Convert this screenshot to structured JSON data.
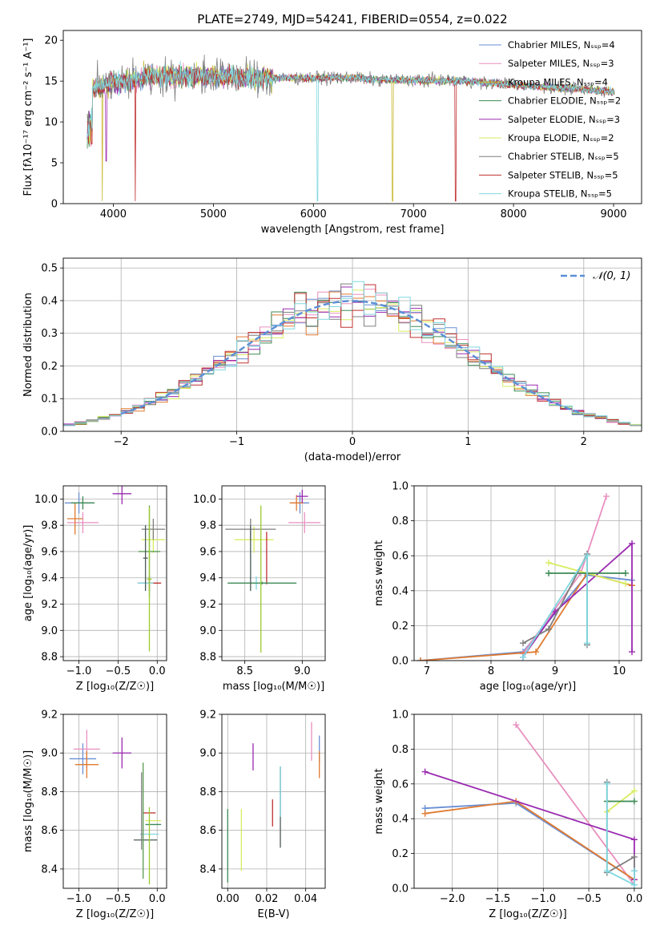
{
  "chart_data": [
    {
      "id": "spectrum",
      "type": "line",
      "title": "PLATE=2749, MJD=54241, FIBERID=0554, z=0.022",
      "xlabel": "wavelength [Angstrom, rest frame]",
      "ylabel": "Flux [fλ10⁻¹⁷ erg cm⁻² s⁻¹ A⁻¹]",
      "xlim": [
        3500,
        9280
      ],
      "ylim": [
        0,
        21.2
      ],
      "xticks": [
        4000,
        5000,
        6000,
        7000,
        8000,
        9000
      ],
      "yticks": [
        0,
        5,
        10,
        15,
        20
      ],
      "grid": false,
      "legend_position": "top-right",
      "data_range": [
        3740,
        9010
      ],
      "series": [
        {
          "name": "Chabrier MILES, Nₛₛₚ=4",
          "color": "#6a8fd4",
          "drops": []
        },
        {
          "name": "Salpeter MILES, Nₛₛₚ=3",
          "color": "#e88fbe",
          "drops": []
        },
        {
          "name": "Kroupa MILES, Nₛₛₚ=4",
          "color": "#c8b830",
          "drops": [
            [
              3890,
              0.3
            ],
            [
              6790,
              0.3
            ]
          ]
        },
        {
          "name": "Chabrier ELODIE, Nₛₛₚ=2",
          "color": "#3d8a55",
          "drops": []
        },
        {
          "name": "Salpeter ELODIE, Nₛₛₚ=3",
          "color": "#9a2ab0",
          "drops": [
            [
              3930,
              5.2
            ]
          ]
        },
        {
          "name": "Kroupa ELODIE, Nₛₛₚ=2",
          "color": "#d8ec60",
          "drops": []
        },
        {
          "name": "Chabrier STELIB, Nₛₛₚ=5",
          "color": "#7f7f7f",
          "drops": []
        },
        {
          "name": "Salpeter STELIB, Nₛₛₚ=5",
          "color": "#c03030",
          "drops": [
            [
              4220,
              0.3
            ],
            [
              7420,
              0.3
            ]
          ]
        },
        {
          "name": "Kroupa STELIB, Nₛₛₚ=5",
          "color": "#7fd8e0",
          "drops": [
            [
              6040,
              0.3
            ]
          ]
        }
      ]
    },
    {
      "id": "residuals",
      "type": "bar",
      "xlabel": "(data-model)/error",
      "ylabel": "Normed distribution",
      "xlim": [
        -2.5,
        2.5
      ],
      "ylim": [
        0,
        0.53
      ],
      "xticks": [
        -2,
        -1,
        0,
        1,
        2
      ],
      "yticks": [
        0.0,
        0.1,
        0.2,
        0.3,
        0.4,
        0.5
      ],
      "grid": true,
      "legend_position": "top-right",
      "reference": {
        "name": "𝒩(0, 1)",
        "color": "#5b8fd6",
        "x_range": [
          -2.0,
          2.0
        ]
      },
      "bin_width": 0.1,
      "series_colors": [
        "#6a8fd4",
        "#e88fbe",
        "#e07a30",
        "#3d8a55",
        "#9a2ab0",
        "#d8ec60",
        "#7f7f7f",
        "#c03030",
        "#7fd8e0"
      ]
    },
    {
      "id": "age_vs_Z",
      "type": "scatter",
      "xlabel": "Z [log₁₀(Z/Z☉)]",
      "ylabel": "age  [log₁₀(age/yr)]",
      "xlim": [
        -1.2,
        0.12
      ],
      "ylim": [
        8.77,
        10.1
      ],
      "xticks": [
        -1.0,
        -0.5,
        0.0
      ],
      "yticks": [
        8.8,
        9.0,
        9.2,
        9.4,
        9.6,
        9.8,
        10.0
      ],
      "grid": true,
      "points": [
        {
          "color": "#6a8fd4",
          "x": -1.0,
          "xerr": 0.18,
          "y": 9.97,
          "yerr": 0.08
        },
        {
          "color": "#e88fbe",
          "x": -0.95,
          "xerr": 0.2,
          "y": 9.82,
          "yerr": 0.08
        },
        {
          "color": "#e07a30",
          "x": -1.05,
          "xerr": 0.1,
          "y": 9.85,
          "yerr": 0.12
        },
        {
          "color": "#3d8a55",
          "x": -0.95,
          "xerr": 0.15,
          "y": 9.97,
          "yerr": 0.05
        },
        {
          "color": "#9a2ab0",
          "x": -0.45,
          "xerr": 0.12,
          "y": 10.04,
          "yerr": 0.08
        },
        {
          "color": "#d8ec60",
          "x": -0.05,
          "xerr": 0.15,
          "y": 9.69,
          "yerr": 0.1
        },
        {
          "color": "#7f7f7f",
          "x": -0.05,
          "xerr": 0.15,
          "y": 9.77,
          "yerr": 0.08
        },
        {
          "color": "#c03030",
          "x": -0.1,
          "xerr": 0.15,
          "y": 9.36,
          "yerr": 0.06
        },
        {
          "color": "#7fd8e0",
          "x": -0.15,
          "xerr": 0.1,
          "y": 9.36,
          "yerr": 0.05
        },
        {
          "color": "#5a9a50",
          "x": -0.1,
          "xerr": 0.14,
          "y": 9.6,
          "yerr": 0.35
        },
        {
          "color": "#9aca30",
          "x": -0.1,
          "xerr": 0.03,
          "y": 9.39,
          "yerr": 0.55
        },
        {
          "color": "#4a5a58",
          "x": -0.15,
          "xerr": 0.03,
          "y": 9.55,
          "yerr": 0.25
        }
      ]
    },
    {
      "id": "age_vs_mass",
      "type": "scatter",
      "xlabel": "mass [log₁₀(M/M☉)]",
      "ylabel": "",
      "xlim": [
        8.3,
        9.2
      ],
      "ylim": [
        8.77,
        10.1
      ],
      "xticks": [
        8.5,
        9.0
      ],
      "yticks": [
        8.8,
        9.0,
        9.2,
        9.4,
        9.6,
        9.8,
        10.0
      ],
      "grid": true,
      "points": [
        {
          "color": "#6a8fd4",
          "x": 8.98,
          "xerr": 0.08,
          "y": 9.97,
          "yerr": 0.08
        },
        {
          "color": "#e88fbe",
          "x": 9.02,
          "xerr": 0.14,
          "y": 9.82,
          "yerr": 0.08
        },
        {
          "color": "#e07a30",
          "x": 8.95,
          "xerr": 0.06,
          "y": 9.97,
          "yerr": 0.06
        },
        {
          "color": "#9a2ab0",
          "x": 9.0,
          "xerr": 0.05,
          "y": 10.02,
          "yerr": 0.05
        },
        {
          "color": "#d8ec60",
          "x": 8.58,
          "xerr": 0.17,
          "y": 9.69,
          "yerr": 0.1
        },
        {
          "color": "#7f7f7f",
          "x": 8.55,
          "xerr": 0.22,
          "y": 9.77,
          "yerr": 0.08
        },
        {
          "color": "#c03030",
          "x": 8.69,
          "xerr": 0.0,
          "y": 9.55,
          "yerr": 0.2
        },
        {
          "color": "#7fd8e0",
          "x": 8.6,
          "xerr": 0.12,
          "y": 9.36,
          "yerr": 0.05
        },
        {
          "color": "#3d8a55",
          "x": 8.65,
          "xerr": 0.3,
          "y": 9.36,
          "yerr": 0.01
        },
        {
          "color": "#9aca30",
          "x": 8.64,
          "xerr": 0.0,
          "y": 9.39,
          "yerr": 0.56
        },
        {
          "color": "#4a5a58",
          "x": 8.55,
          "xerr": 0.0,
          "y": 9.55,
          "yerr": 0.25
        }
      ]
    },
    {
      "id": "weight_vs_age",
      "type": "line",
      "xlabel": "age  [log₁₀(age/yr)]",
      "ylabel": "mass weight",
      "xlim": [
        6.8,
        10.35
      ],
      "ylim": [
        0.0,
        1.0
      ],
      "xticks": [
        7,
        8,
        9,
        10
      ],
      "yticks": [
        0.0,
        0.2,
        0.4,
        0.6,
        0.8,
        1.0
      ],
      "grid": true,
      "series": [
        {
          "color": "#6a8fd4",
          "x": [
            6.9,
            8.5,
            9.5,
            10.2
          ],
          "y": [
            0.0,
            0.05,
            0.49,
            0.46
          ]
        },
        {
          "color": "#e88fbe",
          "x": [
            8.5,
            9.4,
            9.8
          ],
          "y": [
            0.04,
            0.5,
            0.94
          ]
        },
        {
          "color": "#e07a30",
          "x": [
            6.9,
            8.7,
            9.5,
            10.2
          ],
          "y": [
            0.0,
            0.05,
            0.5,
            0.43
          ]
        },
        {
          "color": "#9a2ab0",
          "x": [
            8.5,
            9.0,
            10.2,
            10.2
          ],
          "y": [
            0.02,
            0.28,
            0.67,
            0.05
          ]
        },
        {
          "color": "#d8ec60",
          "x": [
            8.9,
            10.1
          ],
          "y": [
            0.56,
            0.44
          ]
        },
        {
          "color": "#3d8a55",
          "x": [
            8.9,
            10.1
          ],
          "y": [
            0.5,
            0.5
          ]
        },
        {
          "color": "#7f7f7f",
          "x": [
            8.5,
            8.9,
            9.5,
            9.5
          ],
          "y": [
            0.1,
            0.18,
            0.61,
            0.09
          ]
        },
        {
          "color": "#7fd8e0",
          "x": [
            8.5,
            9.5,
            9.5
          ],
          "y": [
            0.02,
            0.6,
            0.1
          ]
        }
      ]
    },
    {
      "id": "mass_vs_Z",
      "type": "scatter",
      "xlabel": "Z [log₁₀(Z/Z☉)]",
      "ylabel": "mass [log₁₀(M/M☉)]",
      "xlim": [
        -1.2,
        0.12
      ],
      "ylim": [
        8.3,
        9.2
      ],
      "xticks": [
        -1.0,
        -0.5,
        0.0
      ],
      "yticks": [
        8.4,
        8.6,
        8.8,
        9.0,
        9.2
      ],
      "grid": true,
      "points": [
        {
          "color": "#6a8fd4",
          "x": -0.95,
          "xerr": 0.17,
          "y": 8.97,
          "yerr": 0.08
        },
        {
          "color": "#e88fbe",
          "x": -0.9,
          "xerr": 0.17,
          "y": 9.02,
          "yerr": 0.1
        },
        {
          "color": "#e07a30",
          "x": -0.9,
          "xerr": 0.15,
          "y": 8.94,
          "yerr": 0.07
        },
        {
          "color": "#9a2ab0",
          "x": -0.45,
          "xerr": 0.12,
          "y": 9.0,
          "yerr": 0.08
        },
        {
          "color": "#c03030",
          "x": -0.1,
          "xerr": 0.08,
          "y": 8.69,
          "yerr": 0.0
        },
        {
          "color": "#d8ec60",
          "x": -0.05,
          "xerr": 0.1,
          "y": 8.65,
          "yerr": 0.0
        },
        {
          "color": "#3d8a55",
          "x": -0.05,
          "xerr": 0.1,
          "y": 8.63,
          "yerr": 0.0
        },
        {
          "color": "#7fd8e0",
          "x": -0.1,
          "xerr": 0.12,
          "y": 8.58,
          "yerr": 0.0
        },
        {
          "color": "#4a5a58",
          "x": -0.15,
          "xerr": 0.15,
          "y": 8.55,
          "yerr": 0.0
        },
        {
          "color": "#5a9a50",
          "x": -0.18,
          "xerr": 0.0,
          "y": 8.65,
          "yerr": 0.3
        },
        {
          "color": "#9aca30",
          "x": -0.1,
          "xerr": 0.0,
          "y": 8.52,
          "yerr": 0.2
        },
        {
          "color": "#7f7f7f",
          "x": -0.2,
          "xerr": 0.0,
          "y": 8.7,
          "yerr": 0.2
        }
      ]
    },
    {
      "id": "mass_vs_ebv",
      "type": "scatter",
      "xlabel": "E(B-V)",
      "ylabel": "",
      "xlim": [
        -0.003,
        0.05
      ],
      "ylim": [
        8.3,
        9.2
      ],
      "xticks": [
        0.0,
        0.02,
        0.04
      ],
      "yticks": [
        8.4,
        8.6,
        8.8,
        9.0,
        9.2
      ],
      "grid": true,
      "points": [
        {
          "color": "#3d8a55",
          "x": 0.0,
          "xerr": 0.0,
          "y": 8.52,
          "yerr": 0.19
        },
        {
          "color": "#d8ec60",
          "x": 0.007,
          "xerr": 0.0,
          "y": 8.55,
          "yerr": 0.16
        },
        {
          "color": "#9a2ab0",
          "x": 0.013,
          "xerr": 0.0,
          "y": 8.98,
          "yerr": 0.07
        },
        {
          "color": "#c03030",
          "x": 0.023,
          "xerr": 0.0,
          "y": 8.69,
          "yerr": 0.07
        },
        {
          "color": "#4a5a58",
          "x": 0.027,
          "xerr": 0.0,
          "y": 8.72,
          "yerr": 0.21
        },
        {
          "color": "#7fd8e0",
          "x": 0.027,
          "xerr": 0.0,
          "y": 8.8,
          "yerr": 0.13
        },
        {
          "color": "#e88fbe",
          "x": 0.043,
          "xerr": 0.0,
          "y": 9.06,
          "yerr": 0.1
        },
        {
          "color": "#6a8fd4",
          "x": 0.047,
          "xerr": 0.0,
          "y": 9.02,
          "yerr": 0.07
        },
        {
          "color": "#e07a30",
          "x": 0.047,
          "xerr": 0.0,
          "y": 8.94,
          "yerr": 0.07
        }
      ]
    },
    {
      "id": "weight_vs_Z",
      "type": "line",
      "xlabel": "Z [log₁₀(Z/Z☉)]",
      "ylabel": "mass weight",
      "xlim": [
        -2.42,
        0.08
      ],
      "ylim": [
        0.0,
        1.0
      ],
      "xticks": [
        -2.0,
        -1.5,
        -1.0,
        -0.5,
        0.0
      ],
      "yticks": [
        0.0,
        0.2,
        0.4,
        0.6,
        0.8,
        1.0
      ],
      "grid": true,
      "series": [
        {
          "color": "#6a8fd4",
          "x": [
            -2.3,
            -1.3,
            0.0
          ],
          "y": [
            0.46,
            0.49,
            0.05
          ]
        },
        {
          "color": "#e88fbe",
          "x": [
            -1.3,
            0.0
          ],
          "y": [
            0.94,
            0.02
          ]
        },
        {
          "color": "#e07a30",
          "x": [
            -2.3,
            -1.3,
            0.0
          ],
          "y": [
            0.43,
            0.5,
            0.05
          ]
        },
        {
          "color": "#9a2ab0",
          "x": [
            -2.3,
            0.0,
            0.0
          ],
          "y": [
            0.67,
            0.28,
            0.05
          ]
        },
        {
          "color": "#d8ec60",
          "x": [
            -0.3,
            0.0
          ],
          "y": [
            0.44,
            0.56
          ]
        },
        {
          "color": "#3d8a55",
          "x": [
            -0.3,
            0.0
          ],
          "y": [
            0.5,
            0.5
          ]
        },
        {
          "color": "#7f7f7f",
          "x": [
            -0.3,
            -0.3,
            0.0,
            0.0
          ],
          "y": [
            0.61,
            0.09,
            0.18,
            0.1
          ]
        },
        {
          "color": "#7fd8e0",
          "x": [
            -0.3,
            -0.3,
            0.0,
            0.0
          ],
          "y": [
            0.6,
            0.1,
            0.02,
            0.1
          ]
        }
      ]
    }
  ]
}
